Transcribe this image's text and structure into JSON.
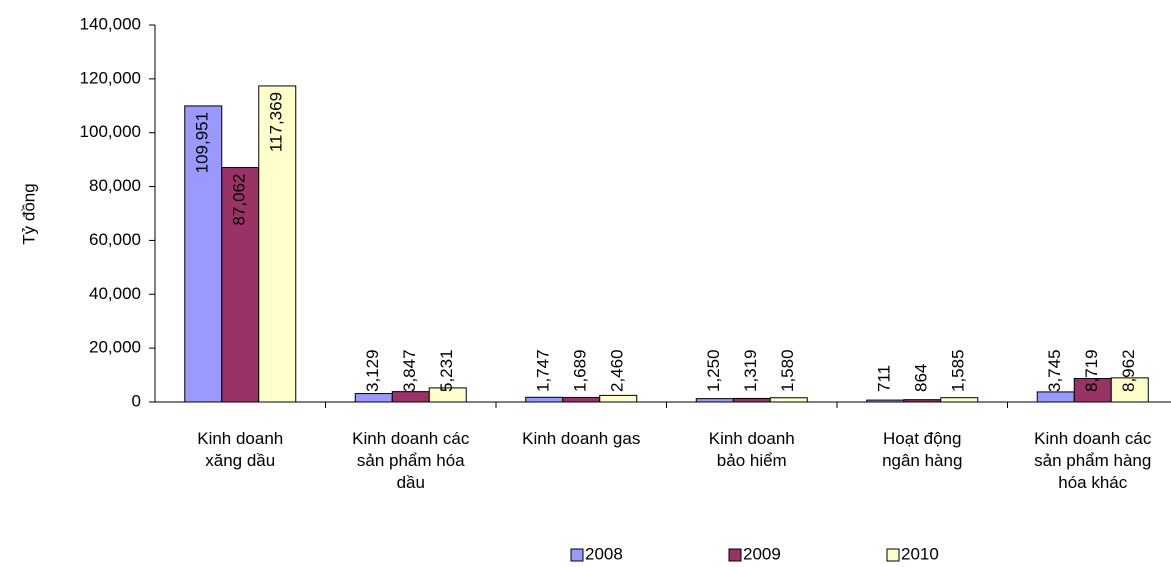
{
  "chart_data": {
    "type": "bar",
    "y_label": "Tỷ đồng",
    "categories": [
      "Kinh doanh\nxăng dầu",
      "Kinh doanh các\nsản phẩm hóa\ndầu",
      "Kinh doanh gas",
      "Kinh doanh\nbảo hiểm",
      "Hoạt động\nngân hàng",
      "Kinh doanh các\nsản phẩm hàng\nhóa khác"
    ],
    "series": [
      {
        "name": "2008",
        "color": "#9999ff",
        "values": [
          109951,
          3129,
          1747,
          1250,
          711,
          3745
        ],
        "value_labels": [
          "109,951",
          "3,129",
          "1,747",
          "1,250",
          "711",
          "3,745"
        ]
      },
      {
        "name": "2009",
        "color": "#993366",
        "values": [
          87062,
          3847,
          1689,
          1319,
          864,
          8719
        ],
        "value_labels": [
          "87,062",
          "3,847",
          "1,689",
          "1,319",
          "864",
          "8,719"
        ]
      },
      {
        "name": "2010",
        "color": "#ffffcc",
        "values": [
          117369,
          5231,
          2460,
          1580,
          1585,
          8962
        ],
        "value_labels": [
          "117,369",
          "5,231",
          "2,460",
          "1,580",
          "1,585",
          "8,962"
        ]
      }
    ],
    "ylim": [
      0,
      140000
    ],
    "yticks": [
      0,
      {
        "value": 20000,
        "label": "20,000"
      },
      {
        "value": 40000,
        "label": "40,000"
      },
      {
        "value": 60000,
        "label": "60,000"
      },
      {
        "value": 80000,
        "label": "80,000"
      },
      {
        "value": 100000,
        "label": "100,000"
      },
      {
        "value": 120000,
        "label": "120,000"
      },
      {
        "value": 140000,
        "label": "140,000"
      }
    ],
    "legend": "bottom"
  }
}
